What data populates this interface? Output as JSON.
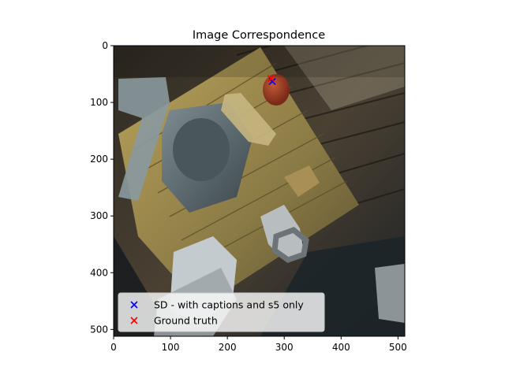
{
  "chart_data": {
    "type": "scatter",
    "title": "Image Correspondence",
    "xlabel": "",
    "ylabel": "",
    "xlim": [
      0,
      512
    ],
    "ylim": [
      512,
      0
    ],
    "xticks": [
      0,
      100,
      200,
      300,
      400,
      500
    ],
    "yticks": [
      0,
      100,
      200,
      300,
      400,
      500
    ],
    "background_image": "photo-top-down-wooden-table-with-pitcher-vase-and-tomato",
    "grid": false,
    "legend_position": "lower-left",
    "series": [
      {
        "name": "SD - with captions and s5 only",
        "marker": "x",
        "color": "#0000ff",
        "points": [
          {
            "x": 279,
            "y": 63
          }
        ]
      },
      {
        "name": "Ground truth",
        "marker": "x",
        "color": "#ff0000",
        "points": [
          {
            "x": 277,
            "y": 58
          }
        ]
      }
    ]
  }
}
